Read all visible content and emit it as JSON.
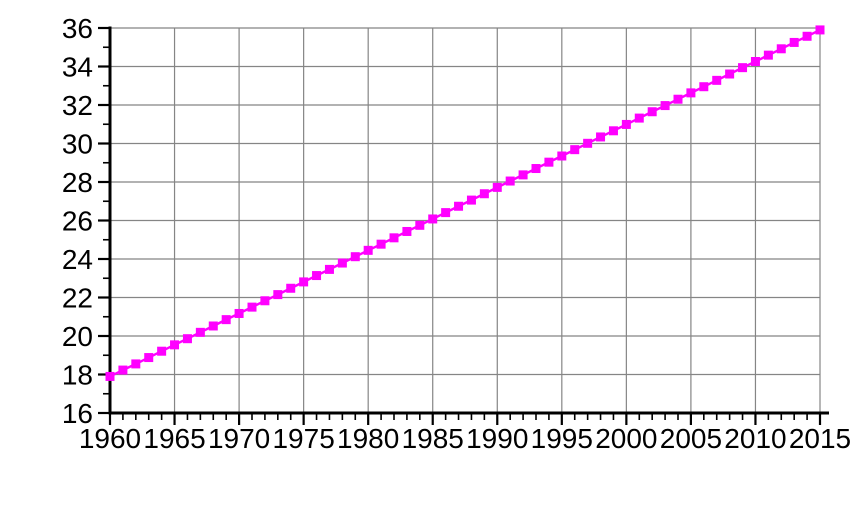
{
  "chart_data": {
    "type": "line",
    "title": "",
    "xlabel": "",
    "ylabel": "",
    "legend": "none",
    "grid": true,
    "marker": "square",
    "line_color": "#ff00ff",
    "marker_color": "#ff00ff",
    "grid_color": "#858585",
    "axis_color": "#000000",
    "text_color": "#000000",
    "background_color": "#ffffff",
    "xlim": [
      1960,
      2015
    ],
    "ylim": [
      16,
      36
    ],
    "x_major_ticks": [
      1960,
      1965,
      1970,
      1975,
      1980,
      1985,
      1990,
      1995,
      2000,
      2005,
      2010,
      2015
    ],
    "y_major_ticks": [
      16,
      18,
      20,
      22,
      24,
      26,
      28,
      30,
      32,
      34,
      36
    ],
    "x_minor_step": 1,
    "y_minor_step": 1,
    "x_tick_labels": [
      "1960",
      "1965",
      "1970",
      "1975",
      "1980",
      "1985",
      "1990",
      "1995",
      "2000",
      "2005",
      "2010",
      "2015"
    ],
    "y_tick_labels": [
      "16",
      "18",
      "20",
      "22",
      "24",
      "26",
      "28",
      "30",
      "32",
      "34",
      "36"
    ],
    "x": [
      1960,
      1961,
      1962,
      1963,
      1964,
      1965,
      1966,
      1967,
      1968,
      1969,
      1970,
      1971,
      1972,
      1973,
      1974,
      1975,
      1976,
      1977,
      1978,
      1979,
      1980,
      1981,
      1982,
      1983,
      1984,
      1985,
      1986,
      1987,
      1988,
      1989,
      1990,
      1991,
      1992,
      1993,
      1994,
      1995,
      1996,
      1997,
      1998,
      1999,
      2000,
      2001,
      2002,
      2003,
      2004,
      2005,
      2006,
      2007,
      2008,
      2009,
      2010,
      2011,
      2012,
      2013,
      2014,
      2015
    ],
    "values": [
      17.9,
      18.23,
      18.55,
      18.88,
      19.21,
      19.54,
      19.86,
      20.19,
      20.52,
      20.85,
      21.17,
      21.5,
      21.83,
      22.15,
      22.48,
      22.81,
      23.14,
      23.46,
      23.79,
      24.12,
      24.45,
      24.77,
      25.1,
      25.43,
      25.75,
      26.08,
      26.41,
      26.74,
      27.06,
      27.39,
      27.72,
      28.05,
      28.37,
      28.7,
      29.03,
      29.35,
      29.68,
      30.01,
      30.34,
      30.66,
      30.99,
      31.32,
      31.65,
      31.97,
      32.3,
      32.63,
      32.95,
      33.28,
      33.61,
      33.94,
      34.26,
      34.59,
      34.92,
      35.25,
      35.57,
      35.9
    ]
  }
}
